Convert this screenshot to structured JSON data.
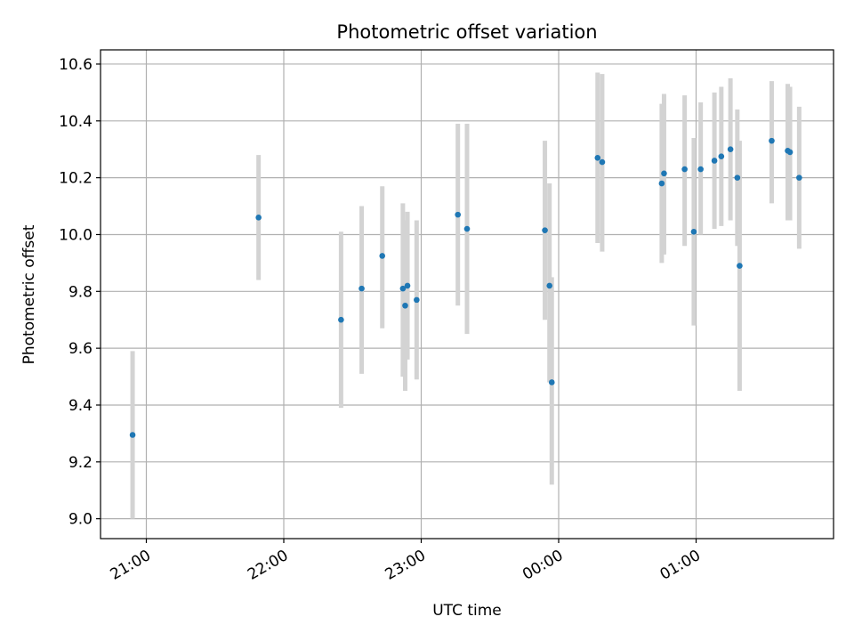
{
  "chart_data": {
    "type": "scatter",
    "title": "Photometric offset variation",
    "xlabel": "UTC time",
    "ylabel": "Photometric offset",
    "x_is_time": true,
    "xlim": [
      "20:40",
      "26:00"
    ],
    "ylim": [
      8.93,
      10.65
    ],
    "xticks": [
      {
        "value": "21:00",
        "label": "21:00"
      },
      {
        "value": "22:00",
        "label": "22:00"
      },
      {
        "value": "23:00",
        "label": "23:00"
      },
      {
        "value": "24:00",
        "label": "00:00"
      },
      {
        "value": "25:00",
        "label": "01:00"
      }
    ],
    "yticks": [
      {
        "value": 9.0,
        "label": "9.0"
      },
      {
        "value": 9.2,
        "label": "9.2"
      },
      {
        "value": 9.4,
        "label": "9.4"
      },
      {
        "value": 9.6,
        "label": "9.6"
      },
      {
        "value": 9.8,
        "label": "9.8"
      },
      {
        "value": 10.0,
        "label": "10.0"
      },
      {
        "value": 10.2,
        "label": "10.2"
      },
      {
        "value": 10.4,
        "label": "10.4"
      },
      {
        "value": 10.6,
        "label": "10.6"
      }
    ],
    "grid": true,
    "colors": {
      "point": "#1f77b4",
      "errorbar": "#d3d3d3",
      "grid": "#b0b0b0"
    },
    "series": [
      {
        "points": [
          {
            "x": "20:54",
            "y": 9.295,
            "ylo": 9.0,
            "yhi": 9.59
          },
          {
            "x": "21:49",
            "y": 10.06,
            "ylo": 9.84,
            "yhi": 10.28
          },
          {
            "x": "22:25",
            "y": 9.7,
            "ylo": 9.39,
            "yhi": 10.01
          },
          {
            "x": "22:34",
            "y": 9.81,
            "ylo": 9.51,
            "yhi": 10.1
          },
          {
            "x": "22:43",
            "y": 9.925,
            "ylo": 9.67,
            "yhi": 10.17
          },
          {
            "x": "22:52",
            "y": 9.81,
            "ylo": 9.5,
            "yhi": 10.11
          },
          {
            "x": "22:53",
            "y": 9.75,
            "ylo": 9.45,
            "yhi": 10.05
          },
          {
            "x": "22:54",
            "y": 9.82,
            "ylo": 9.56,
            "yhi": 10.08
          },
          {
            "x": "22:58",
            "y": 9.77,
            "ylo": 9.49,
            "yhi": 10.05
          },
          {
            "x": "23:16",
            "y": 10.07,
            "ylo": 9.75,
            "yhi": 10.39
          },
          {
            "x": "23:20",
            "y": 10.02,
            "ylo": 9.65,
            "yhi": 10.39
          },
          {
            "x": "23:54",
            "y": 10.015,
            "ylo": 9.7,
            "yhi": 10.33
          },
          {
            "x": "23:56",
            "y": 9.82,
            "ylo": 9.48,
            "yhi": 10.18
          },
          {
            "x": "23:57",
            "y": 9.48,
            "ylo": 9.12,
            "yhi": 9.85
          },
          {
            "x": "24:17",
            "y": 10.27,
            "ylo": 9.97,
            "yhi": 10.57
          },
          {
            "x": "24:19",
            "y": 10.255,
            "ylo": 9.94,
            "yhi": 10.565
          },
          {
            "x": "24:45",
            "y": 10.18,
            "ylo": 9.9,
            "yhi": 10.46
          },
          {
            "x": "24:46",
            "y": 10.215,
            "ylo": 9.93,
            "yhi": 10.495
          },
          {
            "x": "24:55",
            "y": 10.23,
            "ylo": 9.96,
            "yhi": 10.49
          },
          {
            "x": "24:59",
            "y": 10.01,
            "ylo": 9.68,
            "yhi": 10.34
          },
          {
            "x": "25:02",
            "y": 10.23,
            "ylo": 10.0,
            "yhi": 10.465
          },
          {
            "x": "25:08",
            "y": 10.26,
            "ylo": 10.02,
            "yhi": 10.5
          },
          {
            "x": "25:11",
            "y": 10.275,
            "ylo": 10.03,
            "yhi": 10.52
          },
          {
            "x": "25:15",
            "y": 10.3,
            "ylo": 10.05,
            "yhi": 10.55
          },
          {
            "x": "25:18",
            "y": 10.2,
            "ylo": 9.96,
            "yhi": 10.44
          },
          {
            "x": "25:19",
            "y": 9.89,
            "ylo": 9.45,
            "yhi": 10.33
          },
          {
            "x": "25:33",
            "y": 10.33,
            "ylo": 10.11,
            "yhi": 10.54
          },
          {
            "x": "25:40",
            "y": 10.295,
            "ylo": 10.05,
            "yhi": 10.53
          },
          {
            "x": "25:41",
            "y": 10.29,
            "ylo": 10.05,
            "yhi": 10.52
          },
          {
            "x": "25:45",
            "y": 10.2,
            "ylo": 9.95,
            "yhi": 10.45
          }
        ]
      }
    ]
  }
}
